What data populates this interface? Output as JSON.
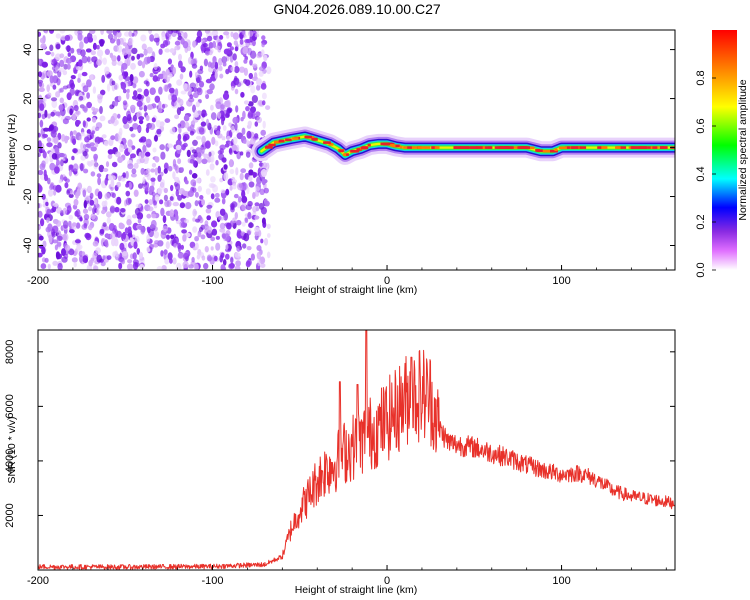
{
  "figure": {
    "title": "GN04.2026.089.10.00.C27"
  },
  "chart_data": [
    {
      "type": "heatmap",
      "xlabel": "Height of straight line (km)",
      "ylabel": "Frequency (Hz)",
      "xlim": [
        -200,
        165
      ],
      "ylim": [
        -50,
        48
      ],
      "xticks": [
        -200,
        -100,
        0,
        100
      ],
      "xtick_labels": [
        "-200",
        "-100",
        "0",
        "100"
      ],
      "yticks": [
        -40,
        -20,
        0,
        20,
        40
      ],
      "ytick_labels": [
        "-40",
        "-20",
        "0",
        "20",
        "40"
      ],
      "noise_region_x": [
        -200,
        -70
      ],
      "signal_track": {
        "x": [
          -72,
          -65,
          -55,
          -47,
          -40,
          -33,
          -28,
          -24,
          -20,
          -15,
          -10,
          -5,
          0,
          5,
          10,
          20,
          40,
          60,
          80,
          88,
          95,
          100,
          120,
          140,
          165
        ],
        "freq": [
          -1.5,
          2,
          3.5,
          4.5,
          3,
          1.5,
          -0.5,
          -3,
          -1.5,
          -0.5,
          1,
          1.5,
          1.5,
          0.5,
          0,
          0,
          0,
          0,
          0,
          -1.5,
          -1.5,
          0,
          0,
          0,
          0
        ]
      },
      "colorbar": {
        "label": "Normalized spectral amplitude",
        "range": [
          0,
          1
        ],
        "ticks": [
          0.0,
          0.2,
          0.4,
          0.6,
          0.8
        ],
        "tick_labels": [
          "0.0",
          "0.2",
          "0.4",
          "0.6",
          "0.8"
        ]
      },
      "grid": false
    },
    {
      "type": "line",
      "xlabel": "Height of straight line (km)",
      "ylabel": "SNR (10 * v/v)",
      "xlim": [
        -200,
        165
      ],
      "ylim": [
        0,
        8800
      ],
      "xticks": [
        -200,
        -100,
        0,
        100
      ],
      "xtick_labels": [
        "-200",
        "-100",
        "0",
        "100"
      ],
      "yticks": [
        2000,
        4000,
        6000,
        8000
      ],
      "ytick_labels": [
        "2000",
        "4000",
        "6000",
        "8000"
      ],
      "series": [
        {
          "color": "#e8312a",
          "x": [
            -200,
            -150,
            -100,
            -70,
            -60,
            -55,
            -50,
            -45,
            -40,
            -35,
            -30,
            -25,
            -20,
            -15,
            -10,
            -5,
            0,
            5,
            10,
            15,
            20,
            25,
            30,
            35,
            40,
            50,
            60,
            70,
            80,
            90,
            100,
            110,
            115,
            120,
            130,
            140,
            150,
            160,
            165
          ],
          "values": [
            120,
            110,
            130,
            200,
            500,
            1500,
            2200,
            2700,
            3300,
            3700,
            3900,
            4300,
            4500,
            4700,
            5000,
            5200,
            5500,
            5800,
            6200,
            6400,
            6500,
            6300,
            5200,
            4700,
            4600,
            4500,
            4300,
            4100,
            3850,
            3650,
            3500,
            3550,
            3450,
            3300,
            2900,
            2700,
            2600,
            2500,
            2450
          ]
        }
      ],
      "annotations": [
        {
          "x": -27,
          "y": 6900
        },
        {
          "x": -17,
          "y": 6800
        },
        {
          "x": -12,
          "y": 8800
        },
        {
          "x": 14,
          "y": 7800
        }
      ],
      "grid": false
    }
  ]
}
